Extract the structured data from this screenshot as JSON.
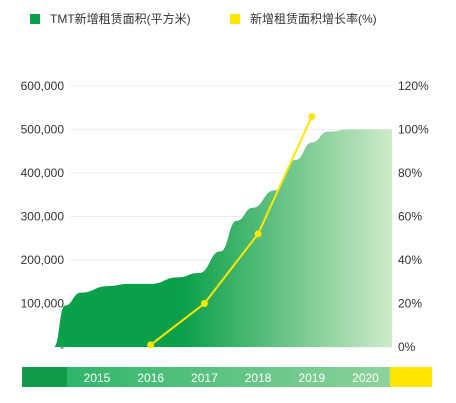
{
  "legend": {
    "area_label": "TMT新增租赁面积(平方米)",
    "growth_label": "新增租赁面积增长率(%)"
  },
  "colors": {
    "area_dark": "#0aa04a",
    "area_light": "#cdebc8",
    "line": "#ffe600",
    "band_dark": "#129a48",
    "band_mid": "#2fb66a",
    "grid": "#eeeeee"
  },
  "chart_data": {
    "type": "area",
    "categories": [
      "2015",
      "2016",
      "2017",
      "2018",
      "2019",
      "2020"
    ],
    "left_axis": {
      "ticks": [
        "-",
        "100,000",
        "200,000",
        "300,000",
        "400,000",
        "500,000",
        "600,000"
      ],
      "range": [
        0,
        600000
      ]
    },
    "right_axis": {
      "ticks": [
        "0%",
        "20%",
        "40%",
        "60%",
        "80%",
        "100%",
        "120%"
      ],
      "range": [
        0,
        120
      ]
    },
    "series": [
      {
        "name": "TMT新增租赁面积(平方米)",
        "type": "area",
        "axis": "left",
        "x": [
          2014.2,
          2014.4,
          2014.7,
          2015.2,
          2015.6,
          2016.0,
          2016.5,
          2016.9,
          2017.3,
          2017.6,
          2017.9,
          2018.3,
          2018.7,
          2019.0,
          2019.3,
          2019.7,
          2020.2,
          2020.6
        ],
        "values": [
          0,
          95000,
          125000,
          140000,
          145000,
          145000,
          160000,
          170000,
          220000,
          290000,
          320000,
          360000,
          430000,
          470000,
          495000,
          500000,
          500000,
          500000
        ]
      },
      {
        "name": "新增租赁面积增长率(%)",
        "type": "line",
        "axis": "right",
        "x": [
          2016,
          2017,
          2018,
          2019
        ],
        "values": [
          1,
          20,
          52,
          106
        ]
      }
    ],
    "grid": true
  }
}
